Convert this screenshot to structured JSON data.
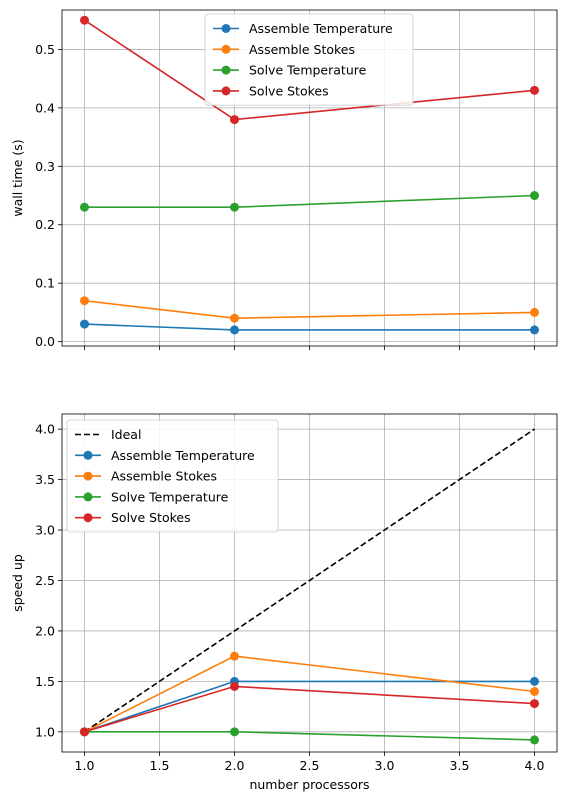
{
  "colors": {
    "assemble_temperature": "#1f77b4",
    "assemble_stokes": "#ff7f0e",
    "solve_temperature": "#2ca02c",
    "solve_stokes": "#d62728",
    "ideal": "#000000",
    "grid": "#b0b0b0"
  },
  "chart_data": [
    {
      "type": "line",
      "title": "",
      "xlabel": "",
      "ylabel": "wall time (s)",
      "x": [
        1,
        2,
        4
      ],
      "xlim": [
        0.85,
        4.15
      ],
      "ylim": [
        -0.0075,
        0.5675
      ],
      "xticks": [
        1.0,
        1.5,
        2.0,
        2.5,
        3.0,
        3.5,
        4.0
      ],
      "yticks": [
        "0.0",
        "0.1",
        "0.2",
        "0.3",
        "0.4",
        "0.5"
      ],
      "show_xtick_labels": false,
      "grid": true,
      "legend": "upper center",
      "series": [
        {
          "name": "Assemble Temperature",
          "key": "assemble_temperature",
          "values": [
            0.03,
            0.02,
            0.02
          ],
          "marker": true,
          "dashed": false
        },
        {
          "name": "Assemble Stokes",
          "key": "assemble_stokes",
          "values": [
            0.07,
            0.04,
            0.05
          ],
          "marker": true,
          "dashed": false
        },
        {
          "name": "Solve Temperature",
          "key": "solve_temperature",
          "values": [
            0.23,
            0.23,
            0.25
          ],
          "marker": true,
          "dashed": false
        },
        {
          "name": "Solve Stokes",
          "key": "solve_stokes",
          "values": [
            0.55,
            0.38,
            0.43
          ],
          "marker": true,
          "dashed": false
        }
      ]
    },
    {
      "type": "line",
      "title": "",
      "xlabel": "number processors",
      "ylabel": "speed up",
      "x": [
        1,
        2,
        4
      ],
      "xlim": [
        0.85,
        4.15
      ],
      "ylim": [
        0.8,
        4.15
      ],
      "xticks": [
        "1.0",
        "1.5",
        "2.0",
        "2.5",
        "3.0",
        "3.5",
        "4.0"
      ],
      "yticks": [
        "1.0",
        "1.5",
        "2.0",
        "2.5",
        "3.0",
        "3.5",
        "4.0"
      ],
      "show_xtick_labels": true,
      "grid": true,
      "legend": "upper left",
      "series": [
        {
          "name": "Ideal",
          "key": "ideal",
          "values": [
            1.0,
            2.0,
            4.0
          ],
          "marker": false,
          "dashed": true
        },
        {
          "name": "Assemble Temperature",
          "key": "assemble_temperature",
          "values": [
            1.0,
            1.5,
            1.5
          ],
          "marker": true,
          "dashed": false
        },
        {
          "name": "Assemble Stokes",
          "key": "assemble_stokes",
          "values": [
            1.0,
            1.75,
            1.4
          ],
          "marker": true,
          "dashed": false
        },
        {
          "name": "Solve Temperature",
          "key": "solve_temperature",
          "values": [
            1.0,
            1.0,
            0.92
          ],
          "marker": true,
          "dashed": false
        },
        {
          "name": "Solve Stokes",
          "key": "solve_stokes",
          "values": [
            1.0,
            1.45,
            1.28
          ],
          "marker": true,
          "dashed": false
        }
      ]
    }
  ]
}
